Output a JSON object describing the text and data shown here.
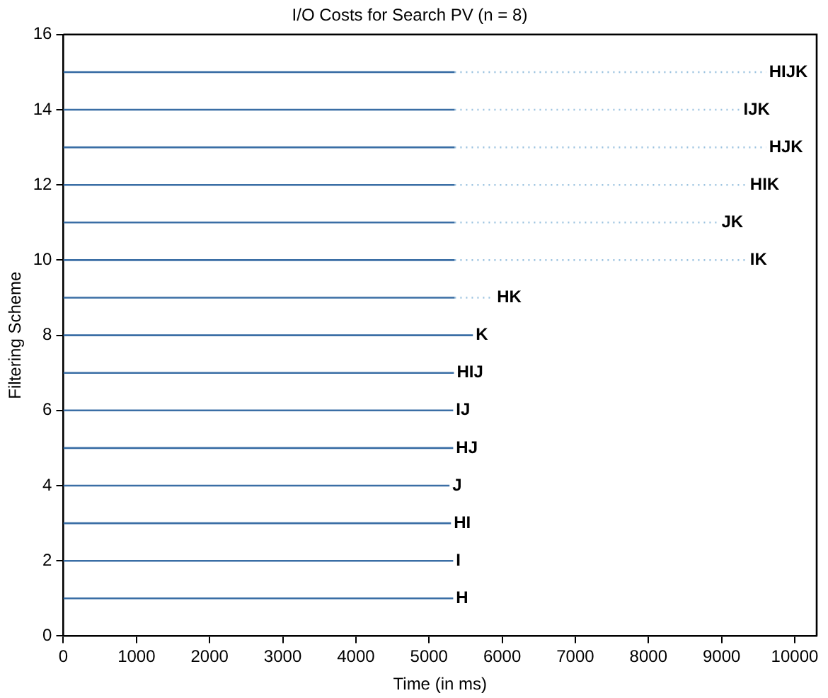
{
  "chart_data": {
    "type": "line",
    "title": "I/O Costs for Search PV (n = 8)",
    "xlabel": "Time (in ms)",
    "ylabel": "Filtering Scheme",
    "xlim": [
      0,
      10300
    ],
    "xticks": [
      0,
      1000,
      2000,
      3000,
      4000,
      5000,
      6000,
      7000,
      8000,
      9000,
      10000
    ],
    "ylim": [
      0,
      16
    ],
    "yticks": [
      0,
      2,
      4,
      6,
      8,
      10,
      12,
      14,
      16
    ],
    "grid": false,
    "legend": false,
    "marker": "none",
    "series": [
      {
        "name": "H",
        "color": "#3a6ea5",
        "x": [
          0,
          5330
        ],
        "values": [
          1,
          1
        ]
      },
      {
        "name": "I",
        "color": "#3a6ea5",
        "x": [
          0,
          5330
        ],
        "values": [
          2,
          2
        ]
      },
      {
        "name": "HI",
        "color": "#3a6ea5",
        "x": [
          0,
          5300
        ],
        "values": [
          3,
          3
        ]
      },
      {
        "name": "J",
        "color": "#3a6ea5",
        "x": [
          0,
          5280
        ],
        "values": [
          4,
          4
        ]
      },
      {
        "name": "HJ",
        "color": "#3a6ea5",
        "x": [
          0,
          5330
        ],
        "values": [
          5,
          5
        ]
      },
      {
        "name": "IJ",
        "color": "#3a6ea5",
        "x": [
          0,
          5330
        ],
        "values": [
          6,
          6
        ]
      },
      {
        "name": "HIJ",
        "color": "#3a6ea5",
        "x": [
          0,
          5340
        ],
        "values": [
          7,
          7
        ]
      },
      {
        "name": "K",
        "color": "#3a6ea5",
        "x": [
          0,
          5600
        ],
        "values": [
          8,
          8
        ]
      },
      {
        "color": "#3a6ea5",
        "x": [
          0,
          5350
        ],
        "values": [
          9,
          9
        ]
      },
      {
        "name": "HK",
        "color": "#9cc3e0",
        "line_style": "dotted",
        "x": [
          5350,
          5890
        ],
        "values": [
          9,
          9
        ]
      },
      {
        "color": "#3a6ea5",
        "x": [
          0,
          5350
        ],
        "values": [
          10,
          10
        ]
      },
      {
        "name": "IK",
        "color": "#9cc3e0",
        "line_style": "dotted",
        "x": [
          5350,
          9350
        ],
        "values": [
          10,
          10
        ]
      },
      {
        "color": "#3a6ea5",
        "x": [
          0,
          5350
        ],
        "values": [
          11,
          11
        ]
      },
      {
        "name": "JK",
        "color": "#9cc3e0",
        "line_style": "dotted",
        "x": [
          5350,
          8960
        ],
        "values": [
          11,
          11
        ]
      },
      {
        "color": "#3a6ea5",
        "x": [
          0,
          5350
        ],
        "values": [
          12,
          12
        ]
      },
      {
        "name": "HIK",
        "color": "#9cc3e0",
        "line_style": "dotted",
        "x": [
          5350,
          9350
        ],
        "values": [
          12,
          12
        ]
      },
      {
        "color": "#3a6ea5",
        "x": [
          0,
          5350
        ],
        "values": [
          13,
          13
        ]
      },
      {
        "name": "HJK",
        "color": "#9cc3e0",
        "line_style": "dotted",
        "x": [
          5350,
          9610
        ],
        "values": [
          13,
          13
        ]
      },
      {
        "color": "#3a6ea5",
        "x": [
          0,
          5350
        ],
        "values": [
          14,
          14
        ]
      },
      {
        "name": "IJK",
        "color": "#9cc3e0",
        "line_style": "dotted",
        "x": [
          5350,
          9260
        ],
        "values": [
          14,
          14
        ]
      },
      {
        "color": "#3a6ea5",
        "x": [
          0,
          5350
        ],
        "values": [
          15,
          15
        ]
      },
      {
        "name": "HIJK",
        "color": "#9cc3e0",
        "line_style": "dotted",
        "x": [
          5350,
          9610
        ],
        "values": [
          15,
          15
        ]
      }
    ]
  }
}
